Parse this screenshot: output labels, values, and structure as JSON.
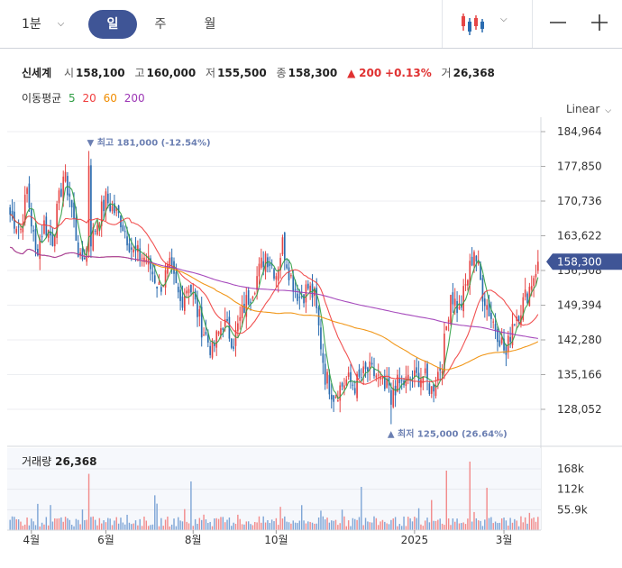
{
  "toolbar": {
    "period_select": "1분",
    "tabs": [
      "일",
      "주",
      "월"
    ],
    "active_tab": 0
  },
  "stock": {
    "name": "신세계",
    "open_label": "시",
    "open": "158,100",
    "high_label": "고",
    "high": "160,000",
    "low_label": "저",
    "low": "155,500",
    "close_label": "종",
    "close": "158,300",
    "change": "200",
    "change_pct": "+0.13%",
    "volume_label": "거",
    "volume": "26,368"
  },
  "moving_average": {
    "label": "이동평균",
    "periods": [
      {
        "value": "5",
        "color": "#2f9e44"
      },
      {
        "value": "20",
        "color": "#f03e3e"
      },
      {
        "value": "60",
        "color": "#f08c00"
      },
      {
        "value": "200",
        "color": "#9c36b5"
      }
    ]
  },
  "scale_mode": "Linear",
  "colors": {
    "up": "#e64545",
    "down": "#2b6cb0",
    "accent": "#3f5596",
    "annotation": "#6b7fb2"
  },
  "chart_data": {
    "type": "candlestick",
    "price_axis": {
      "ticks": [
        128052,
        135166,
        142280,
        149394,
        156508,
        163622,
        170736,
        177850,
        184964
      ],
      "tick_labels": [
        "128,052",
        "135,166",
        "142,280",
        "149,394",
        "156,508",
        "163,622",
        "170,736",
        "177,850",
        "184,964"
      ],
      "current_price": 158300,
      "current_label": "158,300"
    },
    "x_ticks": [
      "4월",
      "6월",
      "8월",
      "10월",
      "2025",
      "3월"
    ],
    "high_annotation": {
      "arrow": "▼",
      "label": "최고",
      "value": "181,000",
      "pct": "(-12.54%)",
      "price": 181000
    },
    "low_annotation": {
      "arrow": "▲",
      "label": "최저",
      "value": "125,000",
      "pct": "(26.64%)",
      "price": 125000
    },
    "path_anchors": [
      [
        0,
        168000
      ],
      [
        5,
        165000
      ],
      [
        8,
        173000
      ],
      [
        12,
        160000
      ],
      [
        16,
        166000
      ],
      [
        20,
        163000
      ],
      [
        25,
        176000
      ],
      [
        28,
        172000
      ],
      [
        33,
        158000
      ],
      [
        38,
        163000
      ],
      [
        45,
        171000
      ],
      [
        52,
        167000
      ],
      [
        58,
        160000
      ],
      [
        64,
        159000
      ],
      [
        70,
        153000
      ],
      [
        75,
        157000
      ],
      [
        80,
        150000
      ],
      [
        84,
        154000
      ],
      [
        90,
        145000
      ],
      [
        95,
        140000
      ],
      [
        100,
        146000
      ],
      [
        105,
        142000
      ],
      [
        110,
        149000
      ],
      [
        115,
        154000
      ],
      [
        120,
        160000
      ],
      [
        125,
        156000
      ],
      [
        128,
        162000
      ],
      [
        132,
        155000
      ],
      [
        136,
        151000
      ],
      [
        140,
        153000
      ],
      [
        143,
        151000
      ],
      [
        148,
        135000
      ],
      [
        152,
        131000
      ],
      [
        158,
        134000
      ],
      [
        162,
        133000
      ],
      [
        168,
        136000
      ],
      [
        172,
        135000
      ],
      [
        176,
        132000
      ],
      [
        182,
        133000
      ],
      [
        188,
        134000
      ],
      [
        194,
        135000
      ],
      [
        198,
        132000
      ],
      [
        203,
        138000
      ],
      [
        207,
        152000
      ],
      [
        211,
        148000
      ],
      [
        215,
        155000
      ],
      [
        218,
        161000
      ],
      [
        222,
        152000
      ],
      [
        226,
        147000
      ],
      [
        230,
        143000
      ],
      [
        233,
        139000
      ],
      [
        236,
        146000
      ],
      [
        240,
        149000
      ],
      [
        244,
        153000
      ],
      [
        248,
        158300
      ]
    ],
    "high_bar": 37,
    "low_bar": 179,
    "volume": {
      "label": "거래량",
      "current": "26,368",
      "ticks": [
        55900,
        112000,
        168000
      ],
      "tick_labels": [
        "55.9k",
        "112k",
        "168k"
      ],
      "max": 210000
    }
  }
}
